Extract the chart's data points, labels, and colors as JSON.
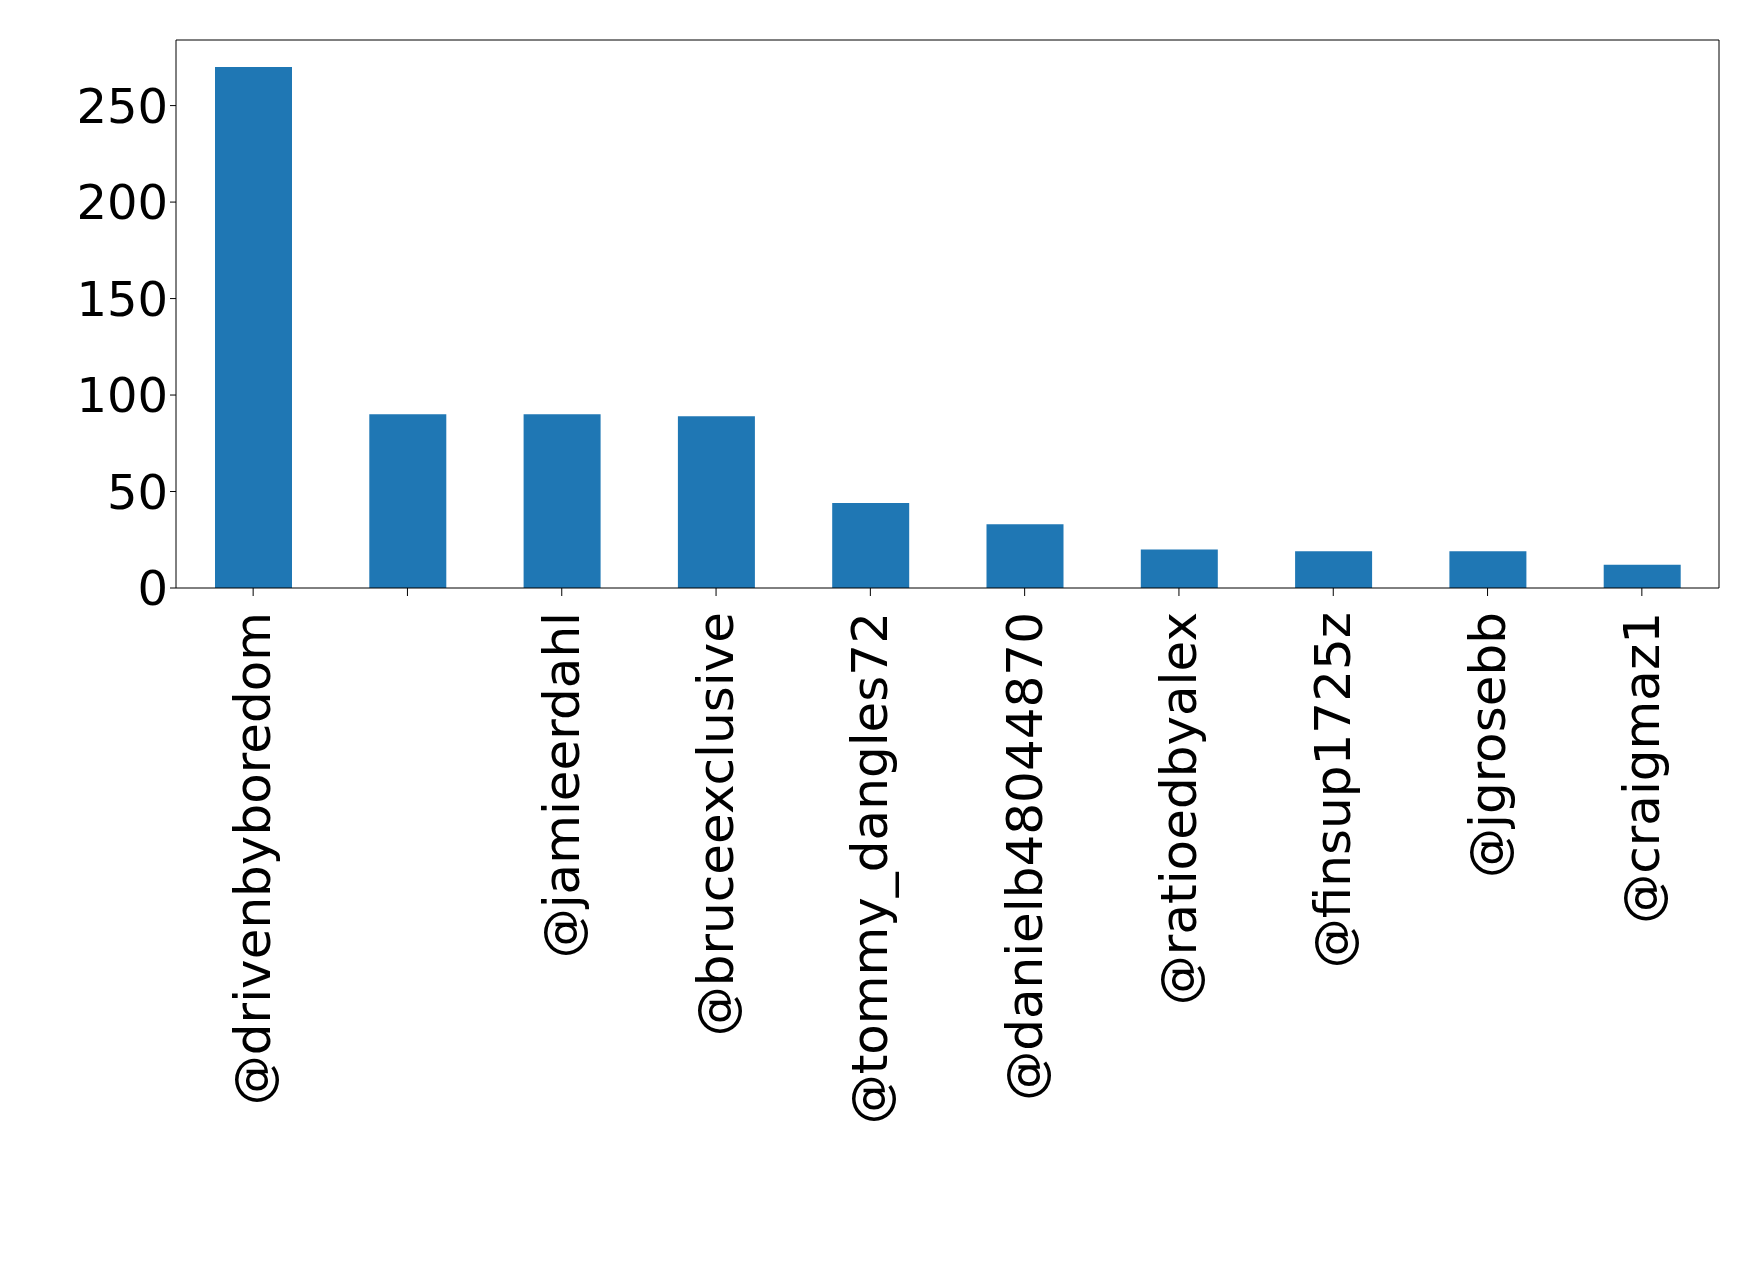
{
  "chart_data": {
    "type": "bar",
    "categories": [
      "@drivenbyboredom",
      null,
      "@jamieerdahl",
      "@bruceexclusive",
      "@tommy_dangles72",
      "@danielb48044870",
      "@ratioedbyalex",
      "@finsup1725z",
      "@jgrosebb",
      "@craigmaz1"
    ],
    "values": [
      270,
      90,
      90,
      89,
      44,
      33,
      20,
      19,
      19,
      12
    ],
    "color": "#1f77b4",
    "ylim": [
      0,
      284
    ],
    "yticks": [
      0,
      50,
      100,
      150,
      200,
      250
    ],
    "grid": false,
    "legend": false
  }
}
